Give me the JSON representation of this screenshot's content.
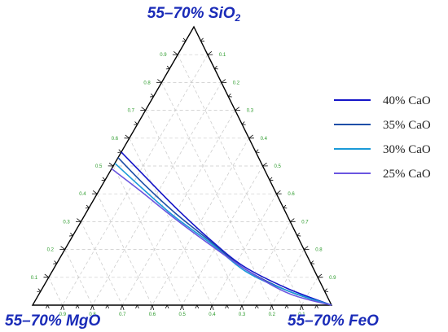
{
  "chart_data": {
    "type": "ternary-line",
    "vertices": {
      "top": {
        "label": "55–70% SiO",
        "sub": "2"
      },
      "left": {
        "label": "55–70% MgO"
      },
      "right": {
        "label": "55–70% FeO"
      }
    },
    "ticks": {
      "left_side": [
        "0.1",
        "0.2",
        "0.3",
        "0.4",
        "0.5",
        "0.6",
        "0.7",
        "0.8",
        "0.9"
      ],
      "right_side": [
        "0.1",
        "0.2",
        "0.3",
        "0.4",
        "0.5",
        "0.6",
        "0.7",
        "0.8",
        "0.9"
      ],
      "bottom_side": [
        "0.9",
        "0.8",
        "0.7",
        "0.6",
        "0.5",
        "0.4",
        "0.3",
        "0.2",
        "0.1"
      ]
    },
    "grid": true,
    "legend_position": "right",
    "series": [
      {
        "name": "40% CaO",
        "color": "#1515c8",
        "points": [
          [
            0.55,
            0.0
          ],
          [
            0.46,
            0.13
          ],
          [
            0.35,
            0.29
          ],
          [
            0.24,
            0.46
          ],
          [
            0.14,
            0.63
          ],
          [
            0.06,
            0.82
          ],
          [
            0.0,
            1.0
          ]
        ]
      },
      {
        "name": "35% CaO",
        "color": "#1f4fa8",
        "points": [
          [
            0.53,
            0.0
          ],
          [
            0.44,
            0.13
          ],
          [
            0.33,
            0.3
          ],
          [
            0.23,
            0.47
          ],
          [
            0.13,
            0.64
          ],
          [
            0.05,
            0.83
          ],
          [
            0.0,
            1.0
          ]
        ]
      },
      {
        "name": "30% CaO",
        "color": "#1a9ad8",
        "points": [
          [
            0.51,
            0.0
          ],
          [
            0.42,
            0.14
          ],
          [
            0.32,
            0.3
          ],
          [
            0.22,
            0.48
          ],
          [
            0.12,
            0.65
          ],
          [
            0.05,
            0.83
          ],
          [
            0.0,
            1.0
          ]
        ]
      },
      {
        "name": "25% CaO",
        "color": "#6a55e0",
        "points": [
          [
            0.49,
            0.0
          ],
          [
            0.41,
            0.14
          ],
          [
            0.31,
            0.31
          ],
          [
            0.21,
            0.49
          ],
          [
            0.12,
            0.66
          ],
          [
            0.04,
            0.84
          ],
          [
            0.0,
            1.0
          ]
        ]
      }
    ]
  }
}
